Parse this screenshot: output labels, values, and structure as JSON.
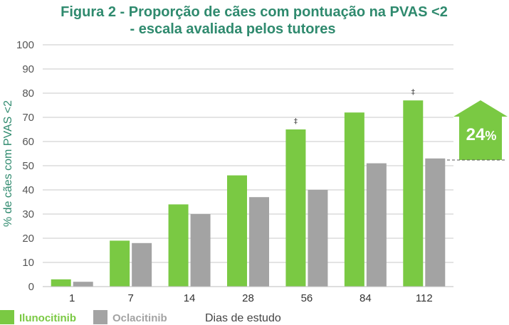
{
  "title_line1": "Figura 2 - Proporção de cães com pontuação na PVAS <2",
  "title_line2": "- escala avaliada pelos tutores",
  "colors": {
    "ilunocitinib": "#7ac943",
    "oclacitinib": "#a3a3a3",
    "title": "#2f8a6e",
    "grid": "#c8c8c8"
  },
  "chart_data": {
    "type": "bar",
    "title": "Figura 2 - Proporção de cães com pontuação na PVAS <2 - escala avaliada pelos tutores",
    "xlabel": "Dias de estudo",
    "ylabel": "% de cães com PVAS <2",
    "ylim": [
      0,
      100
    ],
    "yticks": [
      0,
      10,
      20,
      30,
      40,
      50,
      60,
      70,
      80,
      90,
      100
    ],
    "grid": true,
    "legend_placement": "bottom-left",
    "categories": [
      "1",
      "7",
      "14",
      "28",
      "56",
      "84",
      "112"
    ],
    "series": [
      {
        "name": "Ilunocitinib",
        "values": [
          3,
          19,
          34,
          46,
          65,
          72,
          77
        ]
      },
      {
        "name": "Oclacitinib",
        "values": [
          2,
          18,
          30,
          37,
          40,
          51,
          53
        ]
      }
    ],
    "annotations": [
      {
        "text": "‡",
        "category": "56"
      },
      {
        "text": "‡",
        "category": "112"
      }
    ],
    "callout": {
      "value": "24",
      "unit": "%"
    }
  }
}
